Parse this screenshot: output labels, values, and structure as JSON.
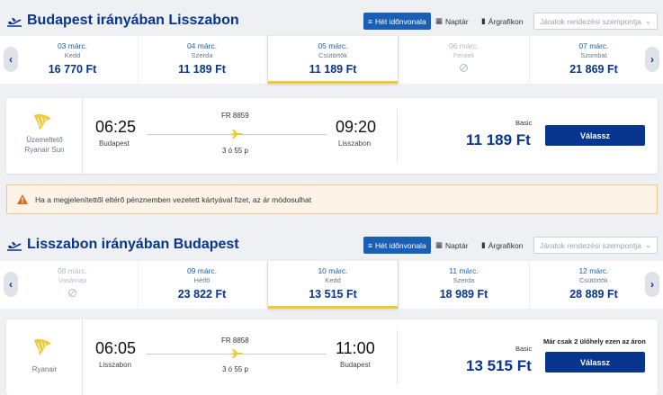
{
  "colors": {
    "brand": "#073590",
    "accent_yellow": "#f1c933",
    "active_button": "#1a5fb4"
  },
  "view_buttons": {
    "week": "Hét időnvonala",
    "calendar": "Naptár",
    "chart": "Árgrafikon"
  },
  "sort_placeholder": "Járatok rendezési szempontja",
  "outbound": {
    "title": "Budapest irányában Lisszabon",
    "dates": [
      {
        "date": "03 márc.",
        "day": "Kedd",
        "price": "16 770 Ft",
        "status": "available"
      },
      {
        "date": "04 márc.",
        "day": "Szerda",
        "price": "11 189 Ft",
        "status": "available"
      },
      {
        "date": "05 márc.",
        "day": "Csütörtök",
        "price": "11 189 Ft",
        "status": "selected"
      },
      {
        "date": "06 márc.",
        "day": "Péntek",
        "price": "",
        "status": "no-flight"
      },
      {
        "date": "07 márc.",
        "day": "Szombat",
        "price": "21 869 Ft",
        "status": "available"
      }
    ],
    "flight": {
      "operator_label": "Üzemeltető",
      "operator_name": "Ryanair Sun",
      "flight_number": "FR 8859",
      "depart_time": "06:25",
      "depart_city": "Budapest",
      "arrive_time": "09:20",
      "arrive_city": "Lisszabon",
      "duration": "3 ó 55 p",
      "fare": "Basic",
      "price": "11 189 Ft",
      "select_label": "Válassz",
      "seat_note": ""
    }
  },
  "warning": "Ha a megjelenítettől eltérő pénznemben vezetett kártyával fizet, az ár módosulhat",
  "inbound": {
    "title": "Lisszabon irányában Budapest",
    "dates": [
      {
        "date": "08 márc.",
        "day": "Vasárnap",
        "price": "",
        "status": "no-flight"
      },
      {
        "date": "09 márc.",
        "day": "Hétfő",
        "price": "23 822 Ft",
        "status": "available"
      },
      {
        "date": "10 márc.",
        "day": "Kedd",
        "price": "13 515 Ft",
        "status": "selected"
      },
      {
        "date": "11 márc.",
        "day": "Szerda",
        "price": "18 989 Ft",
        "status": "available"
      },
      {
        "date": "12 márc.",
        "day": "Csütörtök",
        "price": "28 889 Ft",
        "status": "available"
      }
    ],
    "flight": {
      "operator_label": "",
      "operator_name": "Ryanair",
      "flight_number": "FR 8858",
      "depart_time": "06:05",
      "depart_city": "Lisszabon",
      "arrive_time": "11:00",
      "arrive_city": "Budapest",
      "duration": "3 ó 55 p",
      "fare": "Basic",
      "price": "13 515 Ft",
      "select_label": "Válassz",
      "seat_note": "Már csak 2 ülőhely ezen az áron"
    }
  }
}
